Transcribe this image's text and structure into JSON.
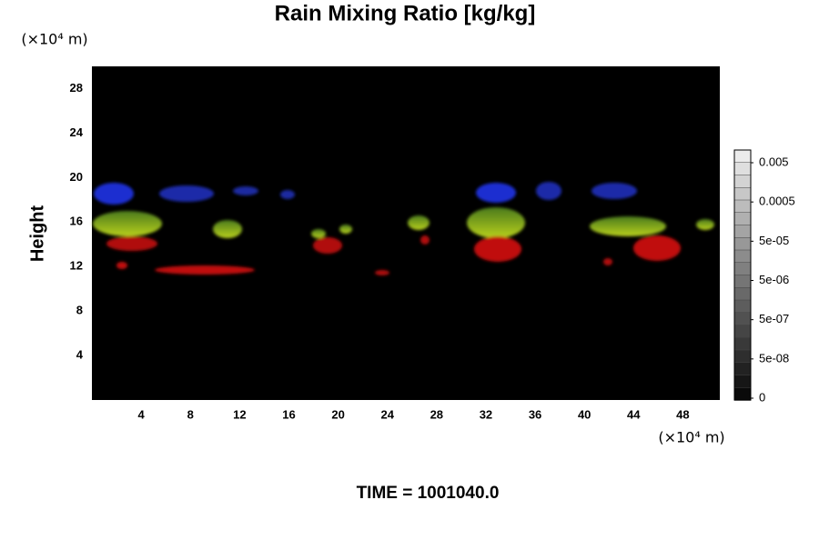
{
  "chart_data": {
    "type": "volume",
    "title": "Rain Mixing Ratio [kg/kg]",
    "y_label": "Height",
    "y_unit": "(×10⁴ m)",
    "x_unit": "(×10⁴ m)",
    "xlim": [
      0,
      51
    ],
    "xticks": [
      4,
      8,
      12,
      16,
      20,
      24,
      28,
      32,
      36,
      40,
      44,
      48
    ],
    "ylim": [
      0,
      30
    ],
    "yticks": [
      4,
      8,
      12,
      16,
      20,
      24,
      28
    ],
    "colorbar_ticks": [
      0.005,
      0.0005,
      {
        "value": 5e-05,
        "label": "5e-05"
      },
      {
        "value": 5e-06,
        "label": "5e-06"
      },
      {
        "value": 5e-07,
        "label": "5e-07"
      },
      {
        "value": 5e-08,
        "label": "5e-08"
      },
      0
    ],
    "footer": "TIME = 1001040.0"
  }
}
